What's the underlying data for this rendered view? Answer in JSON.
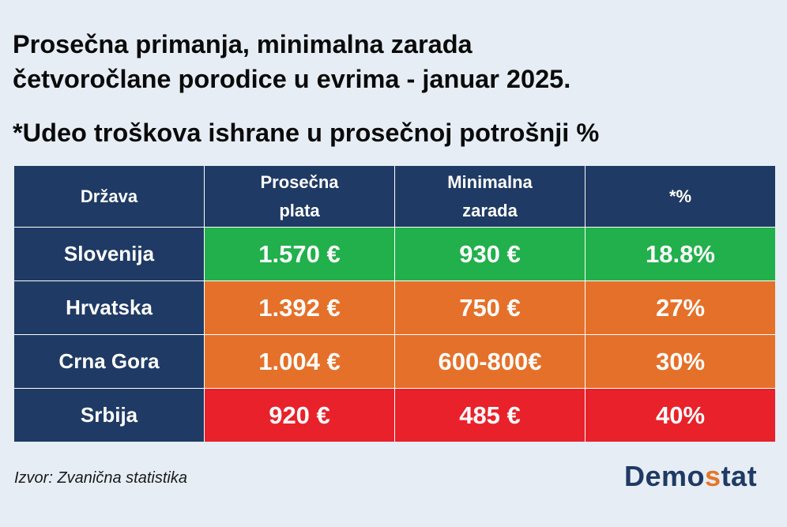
{
  "title_line1": "Prosečna primanja, minimalna zarada",
  "title_line2": "četvoročlane porodice u evrima - januar 2025.",
  "subtitle": "*Udeo troškova ishrane u prosečnoj potrošnji %",
  "source": "Izvor: Zvanična statistika",
  "logo": {
    "part1": "Demo",
    "part2": "s",
    "part3": "tat"
  },
  "colors": {
    "header": "#1f3a64",
    "green": "#21b04b",
    "orange": "#e57029",
    "red": "#e8212a"
  },
  "chart_data": {
    "type": "table",
    "columns": [
      "Država",
      "Prosečna plata",
      "Minimalna zarada",
      "*%"
    ],
    "rows": [
      {
        "country": "Slovenija",
        "avg": "1.570 €",
        "min": "930 €",
        "pct": "18.8%",
        "color": "green"
      },
      {
        "country": "Hrvatska",
        "avg": "1.392 €",
        "min": "750 €",
        "pct": "27%",
        "color": "orange"
      },
      {
        "country": "Crna Gora",
        "avg": "1.004 €",
        "min": "600-800€",
        "pct": "30%",
        "color": "orange"
      },
      {
        "country": "Srbija",
        "avg": "920 €",
        "min": "485 €",
        "pct": "40%",
        "color": "red"
      }
    ]
  }
}
